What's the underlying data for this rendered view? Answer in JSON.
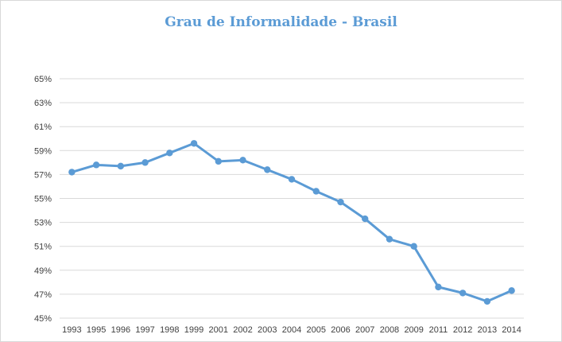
{
  "chart_data": {
    "type": "line",
    "title": "Grau de Informalidade - Brasil",
    "xlabel": "",
    "ylabel": "",
    "categories": [
      "1993",
      "1995",
      "1996",
      "1997",
      "1998",
      "1999",
      "2001",
      "2002",
      "2003",
      "2004",
      "2005",
      "2006",
      "2007",
      "2008",
      "2009",
      "2011",
      "2012",
      "2013",
      "2014"
    ],
    "series": [
      {
        "name": "",
        "values": [
          57.2,
          57.8,
          57.7,
          58.0,
          58.8,
          59.6,
          58.1,
          58.2,
          57.4,
          56.6,
          55.6,
          54.7,
          53.3,
          51.6,
          51.0,
          47.6,
          47.1,
          46.4,
          47.3
        ]
      }
    ],
    "ylim": [
      45,
      65
    ],
    "yticks": [
      45,
      47,
      49,
      51,
      53,
      55,
      57,
      59,
      61,
      63,
      65
    ],
    "ytick_labels": [
      "45%",
      "47%",
      "49%",
      "51%",
      "53%",
      "55%",
      "57%",
      "59%",
      "61%",
      "63%",
      "65%"
    ],
    "grid": true,
    "legend": "none",
    "colors": {
      "line": "#5b9bd5",
      "grid": "#d9d9d9",
      "title": "#5b9bd5",
      "text": "#404040"
    }
  }
}
